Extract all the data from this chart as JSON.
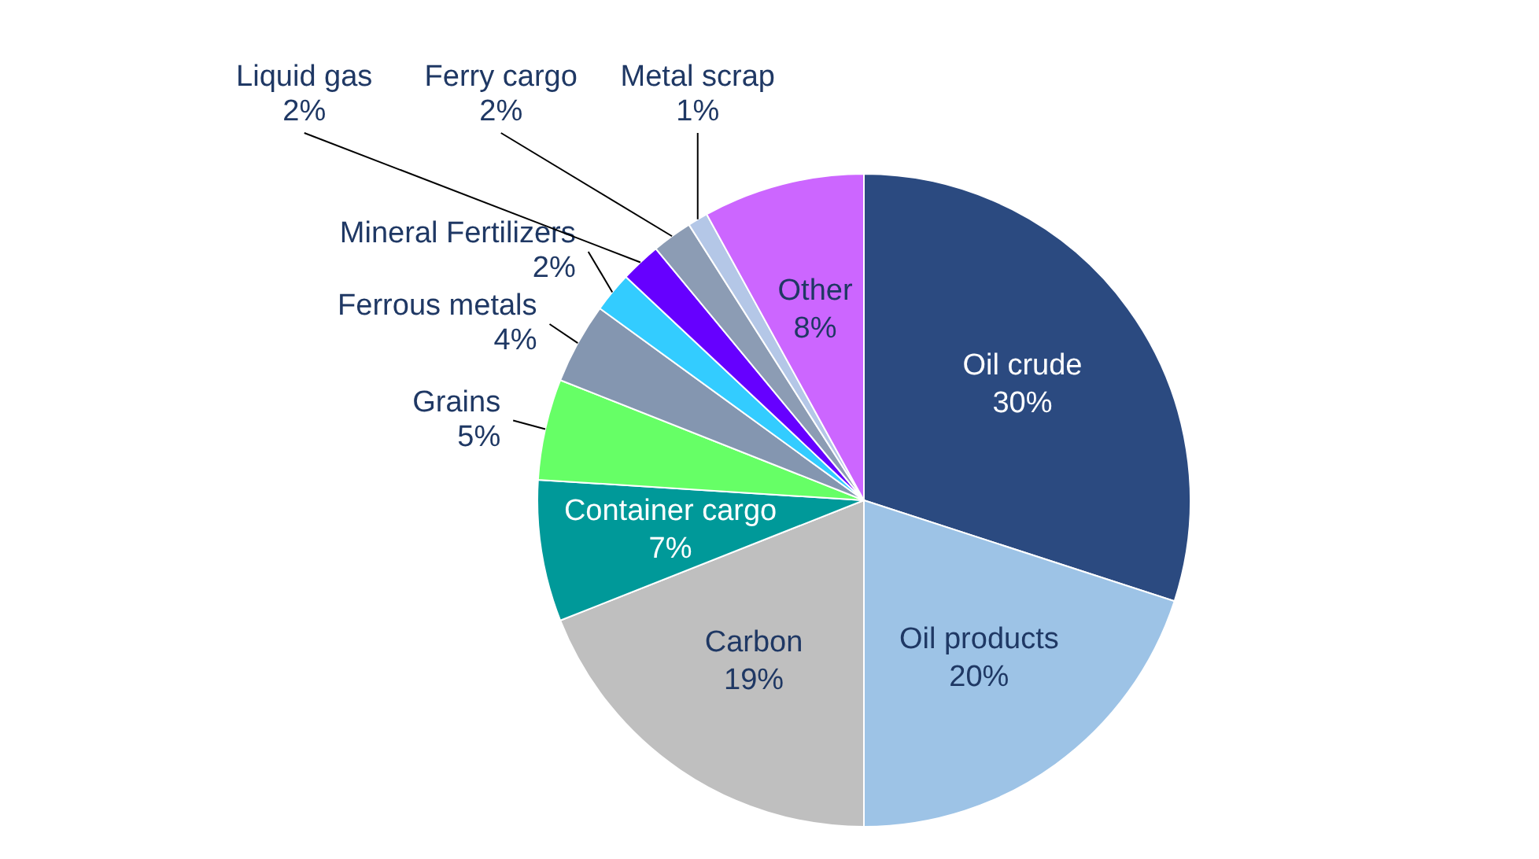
{
  "chart_data": {
    "type": "pie",
    "categories": [
      "Oil crude",
      "Oil products",
      "Carbon",
      "Container cargo",
      "Grains",
      "Ferrous metals",
      "Mineral Fertilizers",
      "Liquid gas",
      "Ferry cargo",
      "Metal scrap",
      "Other"
    ],
    "values": [
      30,
      20,
      19,
      7,
      5,
      4,
      2,
      2,
      2,
      1,
      8
    ],
    "value_labels": [
      "30%",
      "20%",
      "19%",
      "7%",
      "5%",
      "4%",
      "2%",
      "2%",
      "2%",
      "1%",
      "8%"
    ],
    "colors": [
      "#2b4a80",
      "#9dc3e6",
      "#bfbfbf",
      "#009999",
      "#66ff66",
      "#8496b0",
      "#33ccff",
      "#6600ff",
      "#8c9cb4",
      "#b4c7e7",
      "#cc66ff"
    ],
    "legend": false
  }
}
